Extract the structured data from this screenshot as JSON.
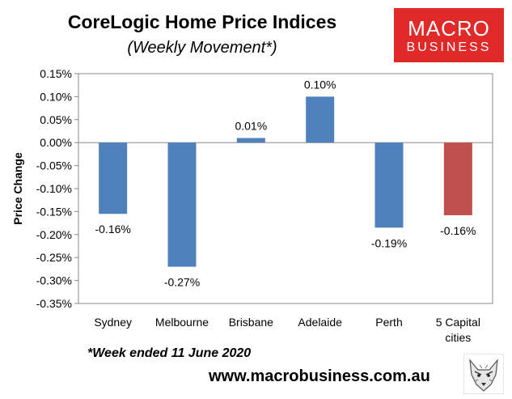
{
  "header": {
    "title": "CoreLogic Home Price Indices",
    "subtitle": "(Weekly Movement*)"
  },
  "logo": {
    "line1": "MACRO",
    "line2": "BUSINESS",
    "bg_color": "#e02a2a"
  },
  "footer": {
    "footnote": "*Week ended 11 June 2020",
    "website": "www.macrobusiness.com.au",
    "wolf_icon": "wolf-icon"
  },
  "chart_data": {
    "type": "bar",
    "title": "CoreLogic Home Price Indices",
    "subtitle": "(Weekly Movement*)",
    "xlabel": "",
    "ylabel": "Price Change",
    "categories": [
      "Sydney",
      "Melbourne",
      "Brisbane",
      "Adelaide",
      "Perth",
      "5 Capital cities"
    ],
    "values": [
      -0.16,
      -0.27,
      0.01,
      0.1,
      -0.19,
      -0.16
    ],
    "bar_values_exact": [
      -0.155,
      -0.27,
      0.01,
      0.1,
      -0.185,
      -0.158
    ],
    "data_labels": [
      "-0.16%",
      "-0.27%",
      "0.01%",
      "0.10%",
      "-0.19%",
      "-0.16%"
    ],
    "ylim": [
      -0.35,
      0.15
    ],
    "yticks": [
      "0.15%",
      "0.10%",
      "0.05%",
      "0.00%",
      "-0.05%",
      "-0.10%",
      "-0.15%",
      "-0.20%",
      "-0.25%",
      "-0.30%",
      "-0.35%"
    ],
    "colors": [
      "#4f81bd",
      "#4f81bd",
      "#4f81bd",
      "#4f81bd",
      "#4f81bd",
      "#c0504d"
    ],
    "grid": false,
    "legend": "none"
  }
}
